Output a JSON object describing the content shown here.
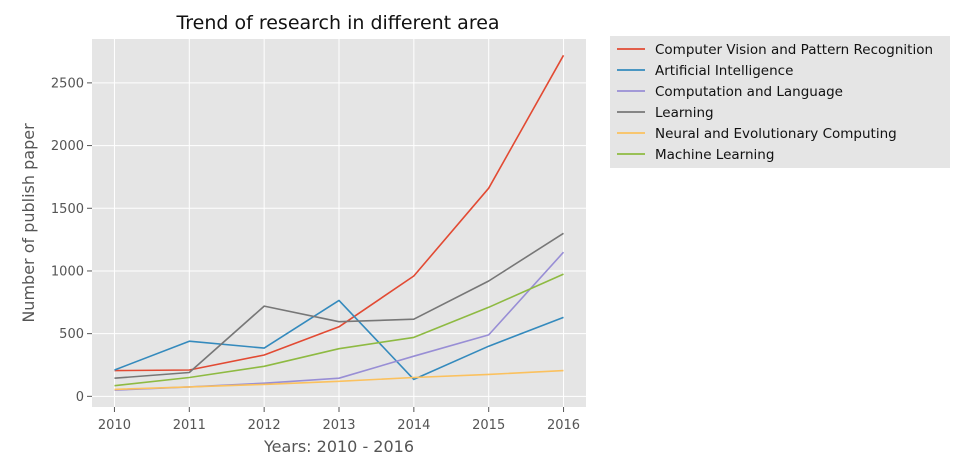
{
  "chart_data": {
    "type": "line",
    "title": "Trend of research in different area",
    "xlabel": "Years: 2010 - 2016",
    "ylabel": "Number of publish paper",
    "x": [
      2010,
      2011,
      2012,
      2013,
      2014,
      2015,
      2016
    ],
    "x_ticks": [
      "2010",
      "2011",
      "2012",
      "2013",
      "2014",
      "2015",
      "2016"
    ],
    "y_ticks": [
      "0",
      "500",
      "1000",
      "1500",
      "2000",
      "2500"
    ],
    "y_tick_values": [
      0,
      500,
      1000,
      1500,
      2000,
      2500
    ],
    "xlim": [
      2009.7,
      2016.3
    ],
    "ylim": [
      -85,
      2850
    ],
    "grid": true,
    "legend_position": "outside-top-right",
    "series": [
      {
        "name": "Computer Vision and Pattern Recognition",
        "color": "#E24A33",
        "values": [
          205,
          210,
          330,
          555,
          960,
          1660,
          2720
        ]
      },
      {
        "name": "Artificial Intelligence",
        "color": "#348ABD",
        "values": [
          210,
          440,
          385,
          765,
          135,
          400,
          630
        ]
      },
      {
        "name": "Computation and Language",
        "color": "#988ED5",
        "values": [
          50,
          75,
          105,
          145,
          320,
          490,
          1150
        ]
      },
      {
        "name": "Learning",
        "color": "#777777",
        "values": [
          145,
          190,
          720,
          595,
          615,
          920,
          1300
        ]
      },
      {
        "name": "Neural and Evolutionary Computing",
        "color": "#FBC15E",
        "values": [
          55,
          75,
          95,
          120,
          150,
          175,
          205
        ]
      },
      {
        "name": "Machine Learning",
        "color": "#8EBA42",
        "values": [
          85,
          150,
          240,
          380,
          470,
          710,
          975
        ]
      }
    ]
  }
}
